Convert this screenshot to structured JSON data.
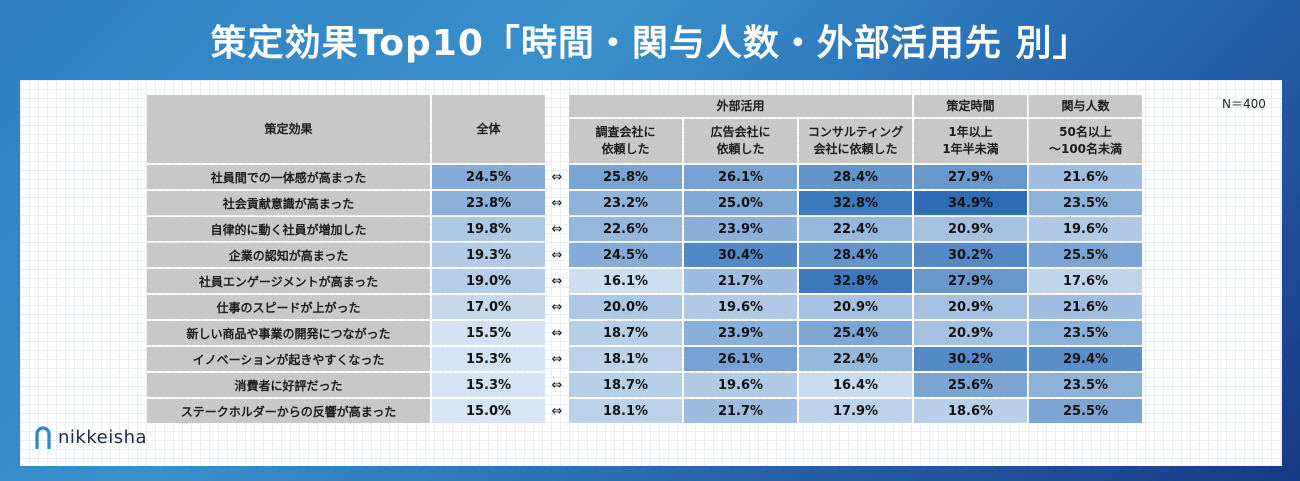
{
  "title": "策定効果Top10「時間・関与人数・外部活用先 別」",
  "n_label": "N＝400",
  "logo_text": "nikkeisha",
  "header": {
    "effect": "策定効果",
    "all": "全体",
    "external_group": "外部活用",
    "col_research_l1": "調査会社に",
    "col_research_l2": "依頼した",
    "col_ad_l1": "広告会社に",
    "col_ad_l2": "依頼した",
    "col_consult_l1": "コンサルティング",
    "col_consult_l2": "会社に依頼した",
    "time_group": "策定時間",
    "time_l1": "1年以上",
    "time_l2": "1年半未満",
    "people_group": "関与人数",
    "people_l1": "50名以上",
    "people_l2": "～100名未満"
  },
  "arrow": "⇔",
  "rows": [
    {
      "label": "社員間での一体感が高まった",
      "all": "24.5%",
      "research": "25.8%",
      "ad": "26.1%",
      "consult": "28.4%",
      "time": "27.9%",
      "people": "21.6%"
    },
    {
      "label": "社会貢献意識が高まった",
      "all": "23.8%",
      "research": "23.2%",
      "ad": "25.0%",
      "consult": "32.8%",
      "time": "34.9%",
      "people": "23.5%"
    },
    {
      "label": "自律的に動く社員が増加した",
      "all": "19.8%",
      "research": "22.6%",
      "ad": "23.9%",
      "consult": "22.4%",
      "time": "20.9%",
      "people": "19.6%"
    },
    {
      "label": "企業の認知が高まった",
      "all": "19.3%",
      "research": "24.5%",
      "ad": "30.4%",
      "consult": "28.4%",
      "time": "30.2%",
      "people": "25.5%"
    },
    {
      "label": "社員エンゲージメントが高まった",
      "all": "19.0%",
      "research": "16.1%",
      "ad": "21.7%",
      "consult": "32.8%",
      "time": "27.9%",
      "people": "17.6%"
    },
    {
      "label": "仕事のスピードが上がった",
      "all": "17.0%",
      "research": "20.0%",
      "ad": "19.6%",
      "consult": "20.9%",
      "time": "20.9%",
      "people": "21.6%"
    },
    {
      "label": "新しい商品や事業の開発につながった",
      "all": "15.5%",
      "research": "18.7%",
      "ad": "23.9%",
      "consult": "25.4%",
      "time": "20.9%",
      "people": "23.5%"
    },
    {
      "label": "イノベーションが起きやすくなった",
      "all": "15.3%",
      "research": "18.1%",
      "ad": "26.1%",
      "consult": "22.4%",
      "time": "30.2%",
      "people": "29.4%"
    },
    {
      "label": "消費者に好評だった",
      "all": "15.3%",
      "research": "18.7%",
      "ad": "19.6%",
      "consult": "16.4%",
      "time": "25.6%",
      "people": "23.5%"
    },
    {
      "label": "ステークホルダーからの反響が高まった",
      "all": "15.0%",
      "research": "18.1%",
      "ad": "21.7%",
      "consult": "17.9%",
      "time": "18.6%",
      "people": "25.5%"
    }
  ]
}
